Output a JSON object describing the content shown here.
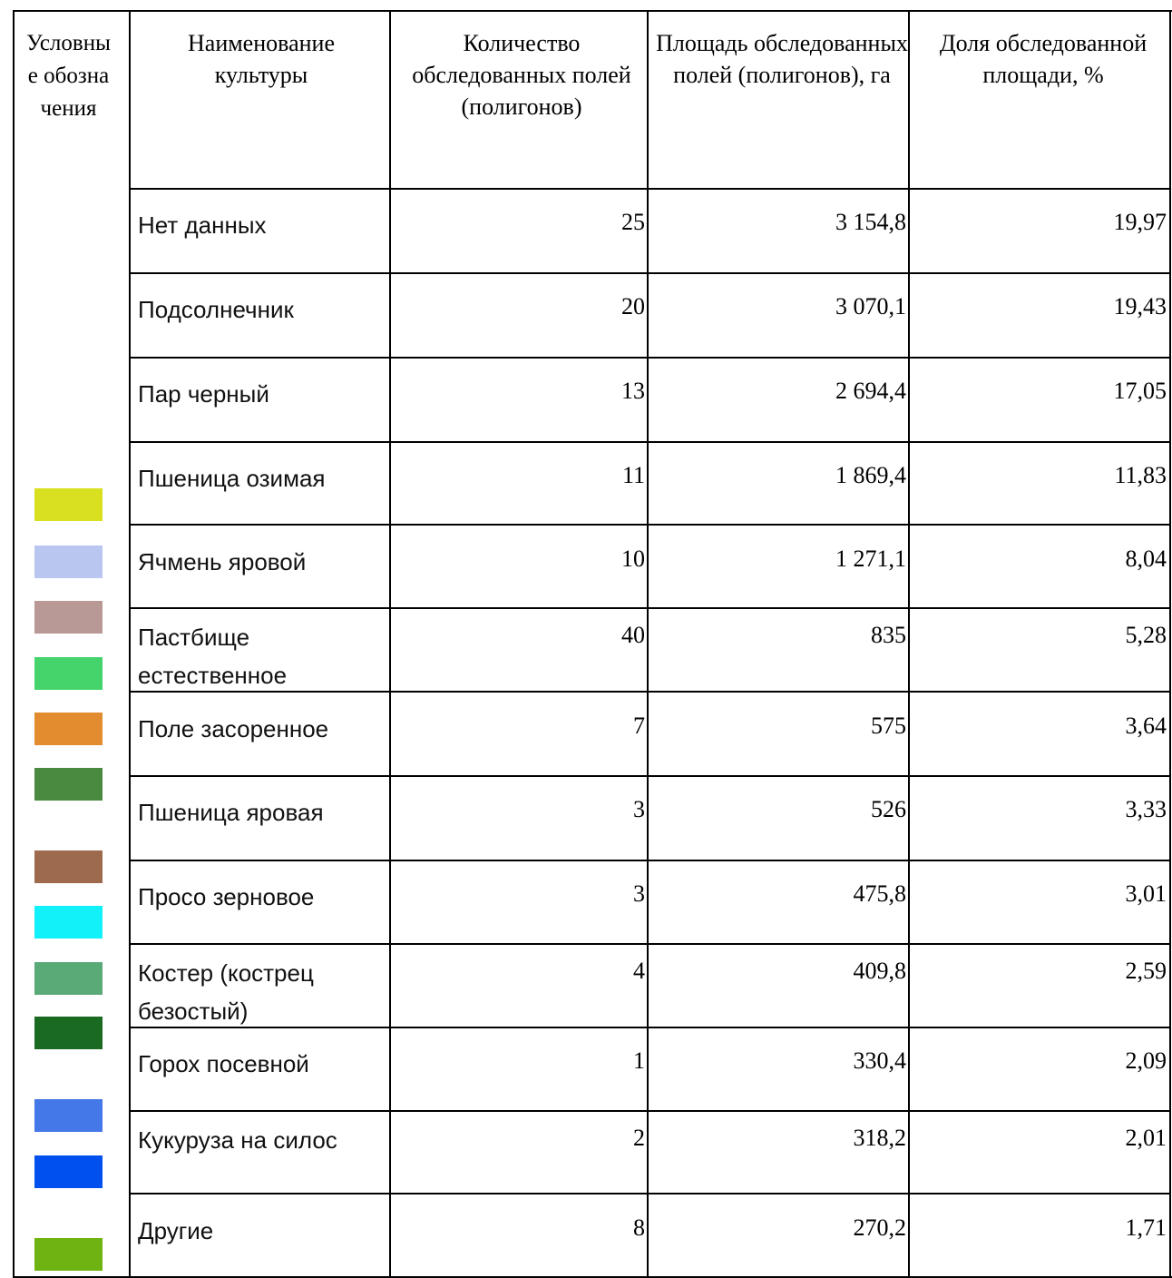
{
  "columns": [
    "Условные обозначения",
    "Наименование культуры",
    "Количество обследованных полей (полигонов)",
    "Площадь обследованных полей (полигонов), га",
    "Доля обследованной площади, %"
  ],
  "rows": [
    {
      "name": "Нет данных",
      "count": "25",
      "area": "3 154,8",
      "share": "19,97"
    },
    {
      "name": "Подсолнечник",
      "count": "20",
      "area": "3 070,1",
      "share": "19,43"
    },
    {
      "name": "Пар черный",
      "count": "13",
      "area": "2 694,4",
      "share": "17,05"
    },
    {
      "name": "Пшеница озимая",
      "count": "11",
      "area": "1 869,4",
      "share": "11,83"
    },
    {
      "name": "Ячмень яровой",
      "count": "10",
      "area": "1 271,1",
      "share": "8,04"
    },
    {
      "name": "Пастбище естественное",
      "count": "40",
      "area": "835",
      "share": "5,28"
    },
    {
      "name": "Поле засоренное",
      "count": "7",
      "area": "575",
      "share": "3,64"
    },
    {
      "name": "Пшеница яровая",
      "count": "3",
      "area": "526",
      "share": "3,33"
    },
    {
      "name": "Просо зерновое",
      "count": "3",
      "area": "475,8",
      "share": "3,01"
    },
    {
      "name": "Костер (кострец безостый)",
      "count": "4",
      "area": "409,8",
      "share": "2,59"
    },
    {
      "name": "Горох посевной",
      "count": "1",
      "area": "330,4",
      "share": "2,09"
    },
    {
      "name": "Кукуруза на силос",
      "count": "2",
      "area": "318,2",
      "share": "2,01"
    },
    {
      "name": "Другие",
      "count": "8",
      "area": "270,2",
      "share": "1,71"
    }
  ],
  "legend_colors": [
    "#d9e01f",
    "#b8c6f0",
    "#b89995",
    "#44d46b",
    "#e28c2f",
    "#4a8a40",
    "#9e6a4d",
    "#12f0fa",
    "#5aaa77",
    "#1a6a22",
    "#4477e8",
    "#0050ef",
    "#6fb312"
  ]
}
